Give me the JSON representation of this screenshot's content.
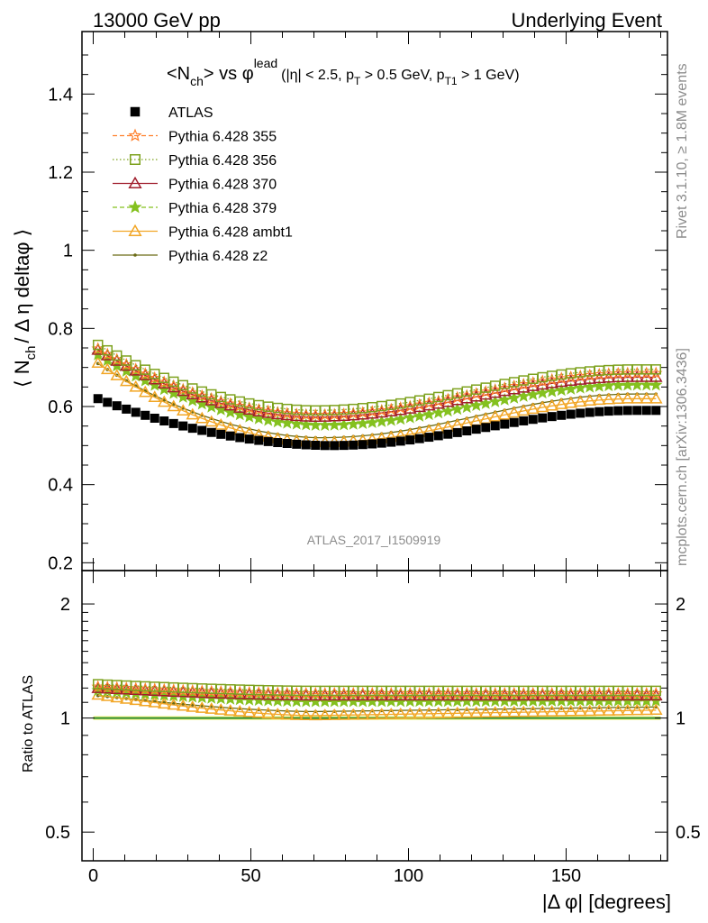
{
  "header": {
    "left": "13000 GeV pp",
    "right": "Underlying Event"
  },
  "plot_title": {
    "main": "<N",
    "main_sub": "ch",
    "main_rest": "> vs ",
    "phi": "φ",
    "phi_sup": "lead",
    "cuts": "(|η| < 2.5, p",
    "cuts_sub1": "T",
    "cuts_mid": " > 0.5 GeV, p",
    "cuts_sub2": "T1",
    "cuts_end": " > 1 GeV)"
  },
  "side_labels": {
    "rivet": "Rivet 3.1.10, ≥ 1.8M events",
    "mcplots": "mcplots.cern.ch [arXiv:1306.3436]"
  },
  "watermark": "ATLAS_2017_I1509919",
  "ylabel_main": {
    "pre": "⟨ N",
    "sub": "ch",
    "post": "/ Δ η deltaφ ⟩"
  },
  "ylabel_ratio": "Ratio to ATLAS",
  "xlabel": "|Δ φ| [degrees]",
  "legend": [
    {
      "label": "ATLAS",
      "color": "#000000",
      "marker": "square-filled",
      "line": "none"
    },
    {
      "label": "Pythia 6.428 355",
      "color": "#ff7f2a",
      "marker": "star-open",
      "line": "dashed"
    },
    {
      "label": "Pythia 6.428 356",
      "color": "#7ea21f",
      "marker": "square-open",
      "line": "dotted"
    },
    {
      "label": "Pythia 6.428 370",
      "color": "#a01e2d",
      "marker": "triangle-open",
      "line": "solid"
    },
    {
      "label": "Pythia 6.428 379",
      "color": "#84c11f",
      "marker": "star-filled",
      "line": "dashed"
    },
    {
      "label": "Pythia 6.428 ambt1",
      "color": "#f2a626",
      "marker": "triangle-open",
      "line": "solid"
    },
    {
      "label": "Pythia 6.428 z2",
      "color": "#6a6a15",
      "marker": "dot",
      "line": "solid"
    }
  ],
  "chart_data": {
    "type": "line",
    "x_points": 60,
    "x_range": [
      0,
      180
    ],
    "main": {
      "ylim": [
        0.18,
        1.56
      ],
      "yticks": [
        "0.2",
        "0.4",
        "0.6",
        "0.8",
        "1",
        "1.2",
        "1.4"
      ],
      "series": [
        {
          "name": "ATLAS",
          "start": 0.625,
          "min": 0.5,
          "min_at": 75,
          "end": 0.59
        },
        {
          "name": "Pythia 6.428 355",
          "start": 0.755,
          "min": 0.578,
          "min_at": 70,
          "end": 0.685
        },
        {
          "name": "Pythia 6.428 356",
          "start": 0.765,
          "min": 0.59,
          "min_at": 70,
          "end": 0.695
        },
        {
          "name": "Pythia 6.428 370",
          "start": 0.752,
          "min": 0.573,
          "min_at": 70,
          "end": 0.675
        },
        {
          "name": "Pythia 6.428 379",
          "start": 0.74,
          "min": 0.552,
          "min_at": 72,
          "end": 0.655
        },
        {
          "name": "Pythia 6.428 ambt1",
          "start": 0.72,
          "min": 0.508,
          "min_at": 72,
          "end": 0.62
        },
        {
          "name": "Pythia 6.428 z2",
          "start": 0.718,
          "min": 0.52,
          "min_at": 72,
          "end": 0.632
        }
      ]
    },
    "ratio": {
      "ylim": [
        0.42,
        2.45
      ],
      "yticks": [
        "0.5",
        "1",
        "2"
      ],
      "reference": 1.0,
      "series": [
        {
          "name": "Pythia 6.428 355",
          "start": 1.21,
          "mid": 1.16,
          "end": 1.16
        },
        {
          "name": "Pythia 6.428 356",
          "start": 1.23,
          "mid": 1.18,
          "end": 1.18
        },
        {
          "name": "Pythia 6.428 370",
          "start": 1.2,
          "mid": 1.145,
          "end": 1.145
        },
        {
          "name": "Pythia 6.428 379",
          "start": 1.185,
          "mid": 1.105,
          "end": 1.11
        },
        {
          "name": "Pythia 6.428 ambt1",
          "start": 1.155,
          "mid": 1.015,
          "end": 1.05
        },
        {
          "name": "Pythia 6.428 z2",
          "start": 1.15,
          "mid": 1.04,
          "end": 1.07
        }
      ]
    },
    "xticks": [
      "0",
      "50",
      "100",
      "150"
    ]
  }
}
